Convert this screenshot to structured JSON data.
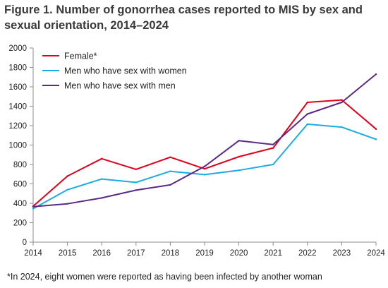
{
  "title_lines": [
    "Figure 1. Number of gonorrhea cases reported to MIS by sex and",
    "sexual orientation, 2014–2024"
  ],
  "footnote": "*In 2024, eight women were reported as having been infected by another woman",
  "chart_data": {
    "type": "line",
    "title": "Figure 1. Number of gonorrhea cases reported to MIS by sex and sexual orientation, 2014–2024",
    "xlabel": "",
    "ylabel": "",
    "x": [
      2014,
      2015,
      2016,
      2017,
      2018,
      2019,
      2020,
      2021,
      2022,
      2023,
      2024
    ],
    "ylim": [
      0,
      2000
    ],
    "yticks": [
      0,
      200,
      400,
      600,
      800,
      1000,
      1200,
      1400,
      1600,
      1800,
      2000
    ],
    "grid": false,
    "legend_position": "top-left",
    "series": [
      {
        "name": "Female*",
        "color": "#e3001b",
        "values": [
          370,
          680,
          860,
          750,
          875,
          755,
          880,
          970,
          1440,
          1465,
          1165
        ]
      },
      {
        "name": "Men who have sex with women",
        "color": "#1aace3",
        "values": [
          345,
          540,
          650,
          615,
          730,
          695,
          740,
          800,
          1215,
          1185,
          1060
        ]
      },
      {
        "name": "Men who have sex with men",
        "color": "#5b2a86",
        "values": [
          365,
          395,
          455,
          535,
          590,
          780,
          1045,
          1005,
          1320,
          1440,
          1730
        ]
      }
    ]
  }
}
